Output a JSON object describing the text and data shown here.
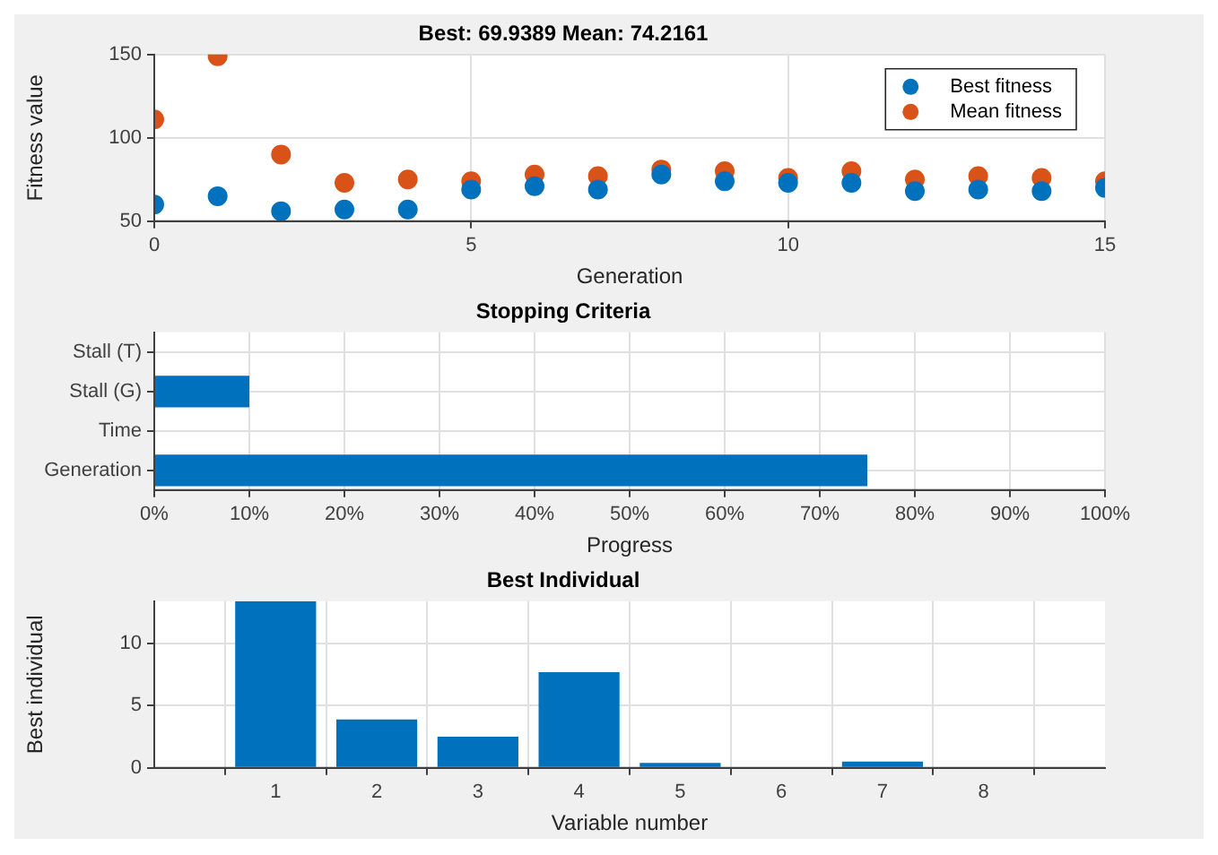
{
  "chart_data": [
    {
      "type": "scatter",
      "title": "Best: 69.9389 Mean: 74.2161",
      "xlabel": "Generation",
      "ylabel": "Fitness value",
      "xlim": [
        0,
        15
      ],
      "xticks": [
        0,
        5,
        10,
        15
      ],
      "ylim": [
        50,
        150
      ],
      "yticks": [
        50,
        100,
        150
      ],
      "grid": true,
      "legend": "top right",
      "marker": "circle",
      "x": [
        0,
        1,
        2,
        3,
        4,
        5,
        6,
        7,
        8,
        9,
        10,
        11,
        12,
        13,
        14,
        15
      ],
      "series": [
        {
          "name": "Best fitness",
          "color": "#0072bd",
          "values": [
            60,
            65,
            56,
            57,
            57,
            69,
            71,
            69,
            78,
            74,
            73,
            73,
            68,
            69,
            68,
            70
          ]
        },
        {
          "name": "Mean fitness",
          "color": "#d95319",
          "values": [
            111,
            149,
            90,
            73,
            75,
            74,
            78,
            77,
            81,
            80,
            76,
            80,
            75,
            77,
            76,
            74
          ]
        }
      ]
    },
    {
      "type": "bar",
      "orientation": "horizontal",
      "title": "Stopping Criteria",
      "xlabel": "Progress",
      "categories": [
        "Stall (T)",
        "Stall (G)",
        "Time",
        "Generation"
      ],
      "values": [
        0,
        10,
        0,
        75
      ],
      "color": "#0072bd",
      "xlim": [
        0,
        100
      ],
      "xticks": [
        {
          "value": 0,
          "label": "0%"
        },
        {
          "value": 10,
          "label": "10%"
        },
        {
          "value": 20,
          "label": "20%"
        },
        {
          "value": 30,
          "label": "30%"
        },
        {
          "value": 40,
          "label": "40%"
        },
        {
          "value": 50,
          "label": "50%"
        },
        {
          "value": 60,
          "label": "60%"
        },
        {
          "value": 70,
          "label": "70%"
        },
        {
          "value": 80,
          "label": "80%"
        },
        {
          "value": 90,
          "label": "90%"
        },
        {
          "value": 100,
          "label": "100%"
        }
      ],
      "grid": true
    },
    {
      "type": "bar",
      "title": "Best Individual",
      "xlabel": "Variable number",
      "ylabel": "Best individual",
      "x": [
        1,
        2,
        3,
        4,
        5,
        6,
        7,
        8
      ],
      "values": [
        13.4,
        3.9,
        2.5,
        7.7,
        0.4,
        0,
        0.5,
        0
      ],
      "color": "#0072bd",
      "xlim": [
        -0.2,
        9.2
      ],
      "xticks": [
        1,
        2,
        3,
        4,
        5,
        6,
        7,
        8
      ],
      "ylim": [
        0,
        13.4
      ],
      "yticks": [
        0,
        5,
        10
      ],
      "grid": true
    }
  ]
}
